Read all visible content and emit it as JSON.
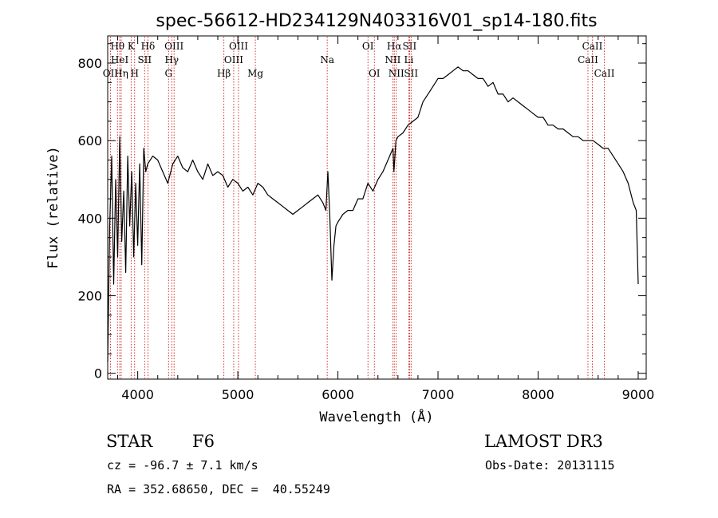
{
  "chart_data": {
    "type": "line",
    "title": "spec-56612-HD234129N403316V01_sp14-180.fits",
    "xlabel": "Wavelength (Å)",
    "ylabel": "Flux (relative)",
    "xlim": [
      3700,
      9080
    ],
    "ylim": [
      -15,
      870
    ],
    "xticks": [
      4000,
      5000,
      6000,
      7000,
      8000,
      9000
    ],
    "yticks": [
      0,
      200,
      400,
      600,
      800
    ],
    "series": [
      {
        "name": "flux",
        "x": [
          3700,
          3720,
          3740,
          3760,
          3780,
          3800,
          3820,
          3840,
          3860,
          3880,
          3900,
          3920,
          3940,
          3960,
          3980,
          4000,
          4020,
          4040,
          4060,
          4080,
          4100,
          4150,
          4200,
          4250,
          4300,
          4350,
          4400,
          4450,
          4500,
          4550,
          4600,
          4650,
          4700,
          4750,
          4800,
          4850,
          4900,
          4950,
          5000,
          5050,
          5100,
          5150,
          5200,
          5250,
          5300,
          5350,
          5400,
          5450,
          5500,
          5550,
          5600,
          5650,
          5700,
          5750,
          5800,
          5850,
          5880,
          5900,
          5920,
          5940,
          5960,
          5980,
          6000,
          6050,
          6100,
          6150,
          6200,
          6250,
          6300,
          6350,
          6400,
          6450,
          6500,
          6550,
          6560,
          6580,
          6600,
          6650,
          6700,
          6750,
          6800,
          6850,
          6900,
          6950,
          7000,
          7050,
          7100,
          7150,
          7200,
          7250,
          7300,
          7350,
          7400,
          7450,
          7500,
          7550,
          7600,
          7650,
          7700,
          7750,
          7800,
          7850,
          7900,
          7950,
          8000,
          8050,
          8100,
          8150,
          8200,
          8250,
          8300,
          8350,
          8400,
          8450,
          8500,
          8550,
          8600,
          8650,
          8700,
          8750,
          8800,
          8850,
          8900,
          8950,
          8980,
          9000
        ],
        "values": [
          30,
          380,
          560,
          230,
          500,
          300,
          610,
          340,
          470,
          260,
          560,
          380,
          520,
          300,
          490,
          330,
          540,
          280,
          580,
          520,
          540,
          560,
          550,
          520,
          490,
          540,
          560,
          530,
          520,
          550,
          520,
          500,
          540,
          510,
          520,
          510,
          480,
          500,
          490,
          470,
          480,
          460,
          490,
          480,
          460,
          450,
          440,
          430,
          420,
          410,
          420,
          430,
          440,
          450,
          460,
          440,
          420,
          520,
          400,
          240,
          330,
          380,
          390,
          410,
          420,
          420,
          450,
          450,
          490,
          470,
          500,
          520,
          550,
          580,
          520,
          600,
          610,
          620,
          640,
          650,
          660,
          700,
          720,
          740,
          760,
          760,
          770,
          780,
          790,
          780,
          780,
          770,
          760,
          760,
          740,
          750,
          720,
          720,
          700,
          710,
          700,
          690,
          680,
          670,
          660,
          660,
          640,
          640,
          630,
          630,
          620,
          610,
          610,
          600,
          600,
          600,
          590,
          580,
          580,
          560,
          540,
          520,
          490,
          440,
          420,
          230
        ]
      }
    ],
    "lines": [
      {
        "name": "OII",
        "wavelength": 3727,
        "row": 3
      },
      {
        "name": "Hθ",
        "wavelength": 3798,
        "row": 1
      },
      {
        "name": "HeI",
        "wavelength": 3820,
        "row": 2
      },
      {
        "name": "Hη",
        "wavelength": 3835,
        "row": 3
      },
      {
        "name": "K",
        "wavelength": 3934,
        "row": 1
      },
      {
        "name": "H",
        "wavelength": 3969,
        "row": 3
      },
      {
        "name": "SII",
        "wavelength": 4069,
        "row": 2
      },
      {
        "name": "Hδ",
        "wavelength": 4102,
        "row": 1
      },
      {
        "name": "G",
        "wavelength": 4308,
        "row": 3
      },
      {
        "name": "Hγ",
        "wavelength": 4340,
        "row": 2
      },
      {
        "name": "OIII",
        "wavelength": 4363,
        "row": 1
      },
      {
        "name": "Hβ",
        "wavelength": 4861,
        "row": 3
      },
      {
        "name": "OIII",
        "wavelength": 4959,
        "row": 2
      },
      {
        "name": "OIII",
        "wavelength": 5007,
        "row": 1
      },
      {
        "name": "Mg",
        "wavelength": 5175,
        "row": 3
      },
      {
        "name": "Na",
        "wavelength": 5893,
        "row": 2
      },
      {
        "name": "OI",
        "wavelength": 6300,
        "row": 1
      },
      {
        "name": "OI",
        "wavelength": 6364,
        "row": 3
      },
      {
        "name": "NII",
        "wavelength": 6548,
        "row": 2
      },
      {
        "name": "Hα",
        "wavelength": 6563,
        "row": 1
      },
      {
        "name": "NII",
        "wavelength": 6583,
        "row": 3
      },
      {
        "name": "SII",
        "wavelength": 6716,
        "row": 1
      },
      {
        "name": "Li",
        "wavelength": 6708,
        "row": 2
      },
      {
        "name": "SII",
        "wavelength": 6731,
        "row": 3
      },
      {
        "name": "CaII",
        "wavelength": 8498,
        "row": 2
      },
      {
        "name": "CaII",
        "wavelength": 8542,
        "row": 1
      },
      {
        "name": "CaII",
        "wavelength": 8662,
        "row": 3
      }
    ],
    "colors": {
      "spectrum": "#000000",
      "lines": "#cc0000",
      "axes": "#000000"
    }
  },
  "info": {
    "object_class": "STAR",
    "subclass": "F6",
    "survey": "LAMOST DR3",
    "cz": "cz = -96.7 ± 7.1 km/s",
    "obs_date": "Obs-Date: 20131115",
    "radec": "RA = 352.68650, DEC =  40.55249"
  }
}
